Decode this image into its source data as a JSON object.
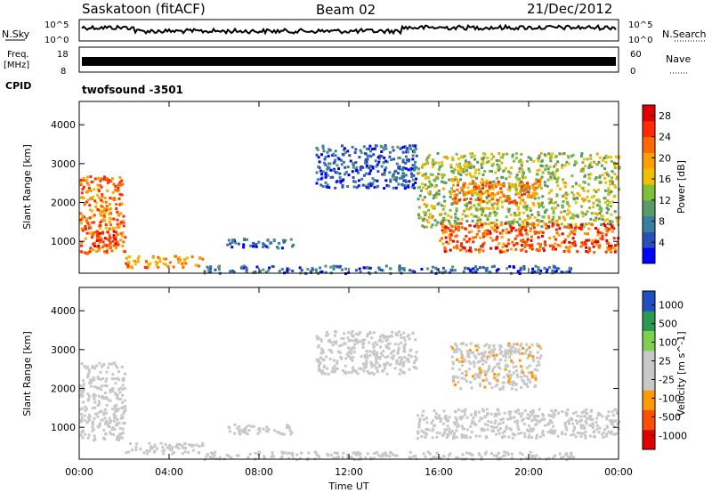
{
  "header": {
    "station": "Saskatoon (fitACF)",
    "beam": "Beam 02",
    "date": "21/Dec/2012"
  },
  "noise_panel": {
    "left_label": "N.Sky",
    "right_label": "N.Search",
    "left_ticks": [
      "10^5",
      "10^0"
    ],
    "right_ticks": [
      "10^5",
      "10^0"
    ]
  },
  "freq_panel": {
    "left_label_1": "Freq.",
    "left_label_2": "[MHz]",
    "right_label": "Nave",
    "left_ticks": [
      "18",
      "8"
    ],
    "right_ticks": [
      "60",
      "0"
    ]
  },
  "cpid": {
    "label": "CPID",
    "value": "twofsound -3501"
  },
  "chart_data": [
    {
      "type": "heatmap",
      "title": "",
      "xlabel": "Time UT",
      "ylabel": "Slant Range [km]",
      "x_ticks": [
        "00:00",
        "04:00",
        "08:00",
        "12:00",
        "16:00",
        "20:00",
        "00:00"
      ],
      "xlim_hours": [
        0,
        24
      ],
      "y_ticks": [
        1000,
        2000,
        3000,
        4000
      ],
      "ylim": [
        180,
        4600
      ],
      "colorbar": {
        "label": "Power [dB]",
        "ticks": [
          "4",
          "8",
          "12",
          "16",
          "20",
          "24",
          "28"
        ],
        "range": [
          0,
          30
        ],
        "colors": [
          "#0000ff",
          "#2a4fb6",
          "#3a7fa0",
          "#5a9a6a",
          "#7fbf3a",
          "#f0c000",
          "#ffa000",
          "#ff6a00",
          "#ff2a00",
          "#e00000"
        ]
      },
      "regions": [
        {
          "t0": 0.0,
          "t1": 2.0,
          "r0": 700,
          "r1": 2700,
          "level": 22
        },
        {
          "t0": 0.2,
          "t1": 1.7,
          "r0": 900,
          "r1": 1300,
          "level": 26
        },
        {
          "t0": 2.0,
          "t1": 5.5,
          "r0": 350,
          "r1": 650,
          "level": 20
        },
        {
          "t0": 5.5,
          "t1": 22.0,
          "r0": 200,
          "r1": 400,
          "level": 6
        },
        {
          "t0": 6.5,
          "t1": 9.5,
          "r0": 850,
          "r1": 1100,
          "level": 6
        },
        {
          "t0": 10.5,
          "t1": 15.0,
          "r0": 2400,
          "r1": 3500,
          "level": 5
        },
        {
          "t0": 15.0,
          "t1": 24.0,
          "r0": 1400,
          "r1": 3300,
          "level": 14
        },
        {
          "t0": 16.0,
          "t1": 24.0,
          "r0": 750,
          "r1": 1500,
          "level": 24
        },
        {
          "t0": 16.5,
          "t1": 20.5,
          "r0": 2000,
          "r1": 2600,
          "level": 22
        }
      ]
    },
    {
      "type": "heatmap",
      "title": "",
      "xlabel": "Time UT",
      "ylabel": "Slant Range [km]",
      "x_ticks": [
        "00:00",
        "04:00",
        "08:00",
        "12:00",
        "16:00",
        "20:00",
        "00:00"
      ],
      "xlim_hours": [
        0,
        24
      ],
      "y_ticks": [
        1000,
        2000,
        3000,
        4000
      ],
      "ylim": [
        180,
        4600
      ],
      "colorbar": {
        "label": "Velocity [m s^-1]",
        "ticks": [
          "1000",
          "500",
          "100",
          "25",
          "-25",
          "-100",
          "-500",
          "-1000"
        ],
        "range": [
          -1200,
          1200
        ],
        "colors": [
          "#e00000",
          "#ff5000",
          "#ff9a00",
          "#c8c8c8",
          "#c8c8c8",
          "#80d050",
          "#2a9a50",
          "#2050c0"
        ]
      },
      "regions": [
        {
          "t0": 0.0,
          "t1": 2.0,
          "r0": 700,
          "r1": 2700,
          "level": -150
        },
        {
          "t0": 2.0,
          "t1": 5.5,
          "r0": 350,
          "r1": 650,
          "level": -60
        },
        {
          "t0": 5.5,
          "t1": 22.0,
          "r0": 200,
          "r1": 400,
          "level": 40
        },
        {
          "t0": 6.5,
          "t1": 9.5,
          "r0": 850,
          "r1": 1100,
          "level": 0
        },
        {
          "t0": 10.5,
          "t1": 15.0,
          "r0": 2400,
          "r1": 3500,
          "level": 0
        },
        {
          "t0": 15.0,
          "t1": 24.0,
          "r0": 750,
          "r1": 1500,
          "level": 0
        },
        {
          "t0": 16.5,
          "t1": 20.5,
          "r0": 2000,
          "r1": 3200,
          "level": -200
        }
      ]
    }
  ]
}
